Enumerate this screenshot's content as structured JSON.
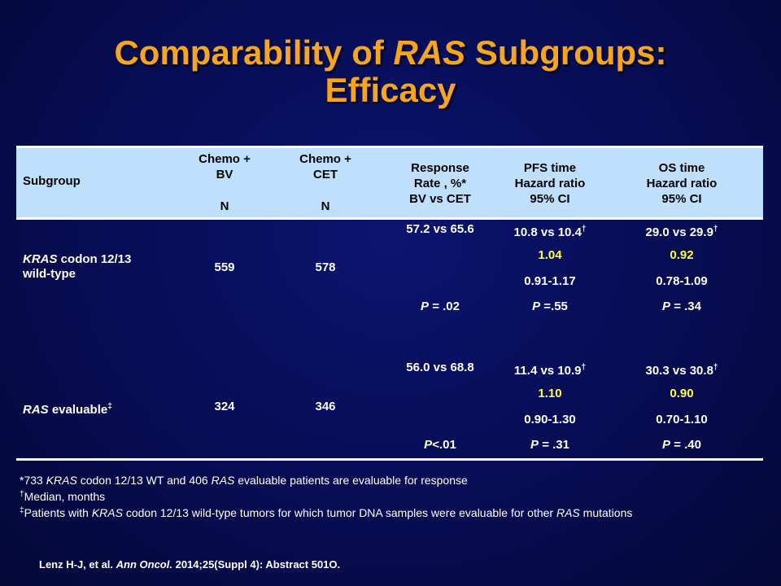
{
  "title": {
    "part1": "Comparability of ",
    "part2_italic": "RAS",
    "part3": " Subgroups:",
    "line2": "Efficacy"
  },
  "table": {
    "headers": {
      "subgroup": "Subgroup",
      "bv_line1": "Chemo +",
      "bv_line2": "BV",
      "bv_n": "N",
      "cet_line1": "Chemo +",
      "cet_line2": "CET",
      "cet_n": "N",
      "rr_line1": "Response",
      "rr_line2": "Rate , %*",
      "rr_line3": "BV vs CET",
      "pfs_line1": "PFS time",
      "pfs_line2": "Hazard ratio",
      "pfs_line3": "95% CI",
      "os_line1": "OS time",
      "os_line2": "Hazard ratio",
      "os_line3": "95% CI"
    },
    "rows": [
      {
        "subgroup_italic": "KRAS",
        "subgroup_rest": " codon 12/13",
        "subgroup_line2": "wild-type",
        "n_bv": "559",
        "n_cet": "578",
        "rr": "57.2 vs 65.6",
        "rr_p_label": "P",
        "rr_p_value": " = .02",
        "pfs_time": "10.8 vs 10.4",
        "pfs_hr": "1.04",
        "pfs_ci": "0.91-1.17",
        "pfs_p_label": "P",
        "pfs_p_value": " =.55",
        "os_time": "29.0 vs 29.9",
        "os_hr": "0.92",
        "os_ci": "0.78-1.09",
        "os_p_label": "P",
        "os_p_value": " = .34"
      },
      {
        "subgroup_italic": "RAS",
        "subgroup_rest": " evaluable",
        "subgroup_line2": "",
        "n_bv": "324",
        "n_cet": "346",
        "rr": "56.0 vs 68.8",
        "rr_p_label": "P",
        "rr_p_value": "<.01",
        "pfs_time": "11.4 vs 10.9",
        "pfs_hr": "1.10",
        "pfs_ci": "0.90-1.30",
        "pfs_p_label": "P",
        "pfs_p_value": " = .31",
        "os_time": "30.3 vs 30.8",
        "os_hr": "0.90",
        "os_ci": "0.70-1.10",
        "os_p_label": "P",
        "os_p_value": " = .40"
      }
    ],
    "dagger": "†",
    "double_dagger": "‡"
  },
  "footnotes": {
    "f1_a": "*733 ",
    "f1_b_italic": "KRAS",
    "f1_c": " codon 12/13 WT and 406 ",
    "f1_d_italic": "RAS",
    "f1_e": " evaluable patients are evaluable for response",
    "f2_sym": "†",
    "f2_text": "Median, months",
    "f3_sym": "‡",
    "f3_a": "Patients with ",
    "f3_b_italic": "KRAS",
    "f3_c": " codon 12/13 wild-type tumors for which tumor DNA samples were evaluable for other ",
    "f3_d_italic": "RAS",
    "f3_e": " mutations"
  },
  "reference": {
    "authors": "Lenz H-J, et al. ",
    "journal_italic": "Ann Oncol.",
    "details": " 2014;25(Suppl 4): Abstract 501O."
  },
  "colors": {
    "title": "#f7a51d",
    "header_band": "#bfe0fc",
    "highlight": "#ffff3c",
    "background": "#070e58"
  }
}
